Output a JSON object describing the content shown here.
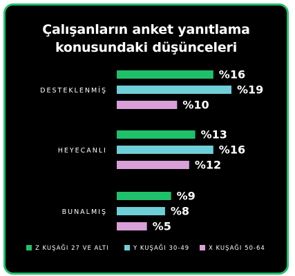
{
  "chart_data": {
    "type": "bar",
    "orientation": "horizontal",
    "title_lines": [
      "Çalışanların anket yanıtlama",
      "konusundaki düşünceleri"
    ],
    "categories": [
      "DESTEKLENMİŞ",
      "HEYECANLI",
      "BUNALMIŞ"
    ],
    "series": [
      {
        "name": "Z KUŞAĞI 27 VE ALTI",
        "color": "#1fc06a",
        "values": [
          16,
          13,
          9
        ]
      },
      {
        "name": "Y KUŞAĞI 30-49",
        "color": "#6fcfd8",
        "values": [
          19,
          16,
          8
        ]
      },
      {
        "name": "X KUŞAĞI 50-64",
        "color": "#d89fd8",
        "values": [
          10,
          12,
          5
        ]
      }
    ],
    "value_prefix": "%",
    "xlim": [
      0,
      19
    ],
    "grid": false,
    "legend_position": "bottom"
  }
}
